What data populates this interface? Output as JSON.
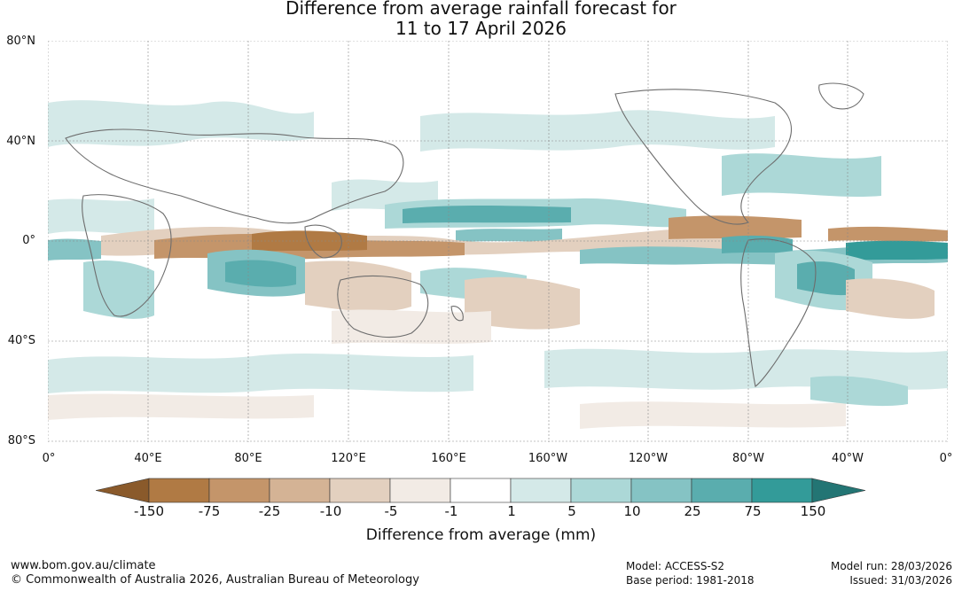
{
  "title": {
    "line1": "Difference from average rainfall forecast for",
    "line2": "11 to 17 April 2026"
  },
  "map": {
    "lat_labels": [
      "80°N",
      "40°N",
      "0°",
      "40°S",
      "80°S"
    ],
    "lon_labels": [
      "0°",
      "40°E",
      "80°E",
      "120°E",
      "160°E",
      "160°W",
      "120°W",
      "80°W",
      "40°W",
      "0°"
    ],
    "grid": true
  },
  "colorbar": {
    "title": "Difference from average (mm)",
    "labels": [
      "-150",
      "-75",
      "-25",
      "-10",
      "-5",
      "-1",
      "1",
      "5",
      "10",
      "25",
      "75",
      "150"
    ],
    "colors": {
      "below_min": "#8a5a2b",
      "bins": [
        "#b07a44",
        "#c4956a",
        "#d4b395",
        "#e3d0bf",
        "#f2ebe5",
        "#ffffff",
        "#d4e9e8",
        "#acd8d7",
        "#85c3c4",
        "#5aadae",
        "#339b99"
      ],
      "above_max": "#237574"
    }
  },
  "footer": {
    "url": "www.bom.gov.au/climate",
    "copyright": "© Commonwealth of Australia 2026, Australian Bureau of Meteorology",
    "model": "Model: ACCESS-S2",
    "base_period": "Base period: 1981-2018",
    "model_run": "Model run: 28/03/2026",
    "issued": "Issued: 31/03/2026"
  }
}
